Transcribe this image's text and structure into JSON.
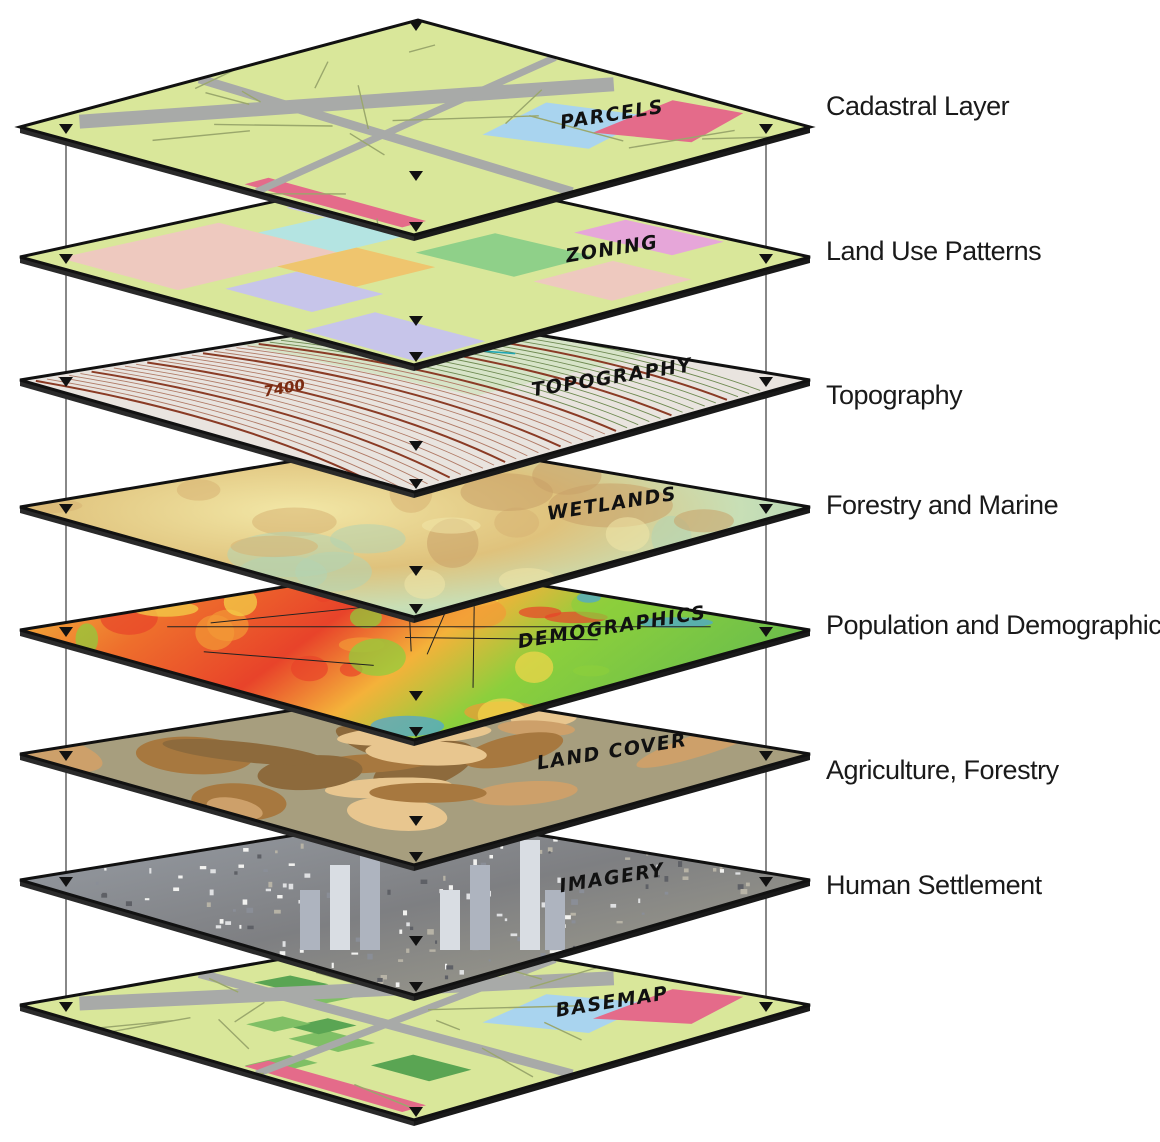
{
  "layers": [
    {
      "title": "PARCELS",
      "caption": "Cadastral Layer"
    },
    {
      "title": "ZONING",
      "caption": "Land Use Patterns"
    },
    {
      "title": "TOPOGRAPHY",
      "caption": "Topography",
      "contour_value": "7400"
    },
    {
      "title": "WETLANDS",
      "caption": "Forestry and Marine"
    },
    {
      "title": "DEMOGRAPHICS",
      "caption": "Population and Demographic"
    },
    {
      "title": "LAND COVER",
      "caption": "Agriculture, Forestry"
    },
    {
      "title": "IMAGERY",
      "caption": "Human Settlement"
    },
    {
      "title": "BASEMAP",
      "caption": ""
    }
  ],
  "colors": {
    "parcel_base": "#d9e79a",
    "road": "#a8aaa8",
    "water": "#a9d4ef",
    "zoning_pink": "#eec9bf",
    "zoning_cyan": "#b4e4e2",
    "zoning_orange": "#efc56e",
    "zoning_lavender": "#c7c5ea",
    "zoning_green": "#8fd089",
    "topo_base": "#e9e4df",
    "contour_brown": "#8a3b25",
    "wetlands_tan": "#d7b372",
    "wetlands_pale": "#f0e6a8",
    "wetlands_green": "#b2d3b2",
    "demo_red": "#e8432a",
    "demo_orange": "#f29a36",
    "demo_yellow": "#f3d64a",
    "demo_green": "#8ccf3c",
    "demo_blue": "#4aa5d9",
    "landcover_brown": "#a7783f",
    "landcover_tan": "#e8c68f",
    "landcover_grey": "#a79e7e",
    "imagery_grey": "#8c8f96",
    "basemap_green": "#5aa553"
  }
}
